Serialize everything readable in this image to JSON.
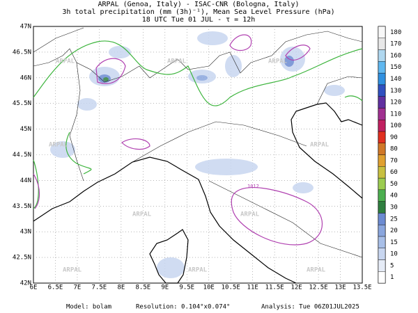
{
  "header": {
    "lines": [
      "ARPAL (Genoa, Italy)  -  ISAC-CNR (Bologna, Italy)",
      "3h total precipitation (mm (3h)⁻¹), Mean Sea Level Pressure (hPa)",
      "18 UTC Tue 01 JUL  -  τ = 12h"
    ]
  },
  "map": {
    "lat_labels": [
      "47N",
      "46.5N",
      "46N",
      "45.5N",
      "45N",
      "44.5N",
      "44N",
      "43.5N",
      "43N",
      "42.5N",
      "42N"
    ],
    "lon_labels": [
      "6E",
      "6.5E",
      "7E",
      "7.5E",
      "8E",
      "8.5E",
      "9E",
      "9.5E",
      "10E",
      "10.5E",
      "11E",
      "11.5E",
      "12E",
      "12.5E",
      "13E",
      "13.5E"
    ],
    "watermark": "ARPAL",
    "isobar_label": "1012"
  },
  "colorbar": {
    "labels": [
      1,
      5,
      10,
      15,
      20,
      25,
      30,
      40,
      50,
      60,
      70,
      80,
      90,
      100,
      110,
      120,
      130,
      140,
      150,
      160,
      170,
      180
    ],
    "colors": [
      "#ffffff",
      "#e6ecf7",
      "#c8d6f0",
      "#a8bfe8",
      "#8aa6de",
      "#6c8bd2",
      "#2f7f3f",
      "#4caf50",
      "#9ccc50",
      "#c8c040",
      "#e0a030",
      "#d07828",
      "#e03020",
      "#c02060",
      "#a03090",
      "#6030a0",
      "#3050c0",
      "#3090e0",
      "#60b8f0",
      "#b0d8f0",
      "#e8e8e8",
      "#f8f8f8"
    ]
  },
  "footer": {
    "model": "Model: bolam",
    "resolution": "Resolution: 0.104°x0.074°",
    "analysis": "Analysis: Tue 06Z01JUL2025"
  }
}
